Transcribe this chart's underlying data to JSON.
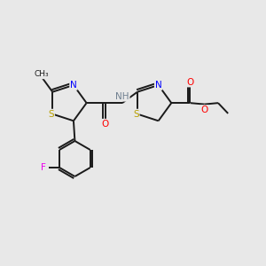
{
  "background_color": "#e8e8e8",
  "bond_color": "#1a1a1a",
  "atom_colors": {
    "N": "#0000ff",
    "S": "#b8a000",
    "O": "#ff0000",
    "F": "#ee00ee",
    "H": "#708090",
    "C": "#1a1a1a"
  },
  "figsize": [
    3.0,
    3.0
  ],
  "dpi": 100
}
